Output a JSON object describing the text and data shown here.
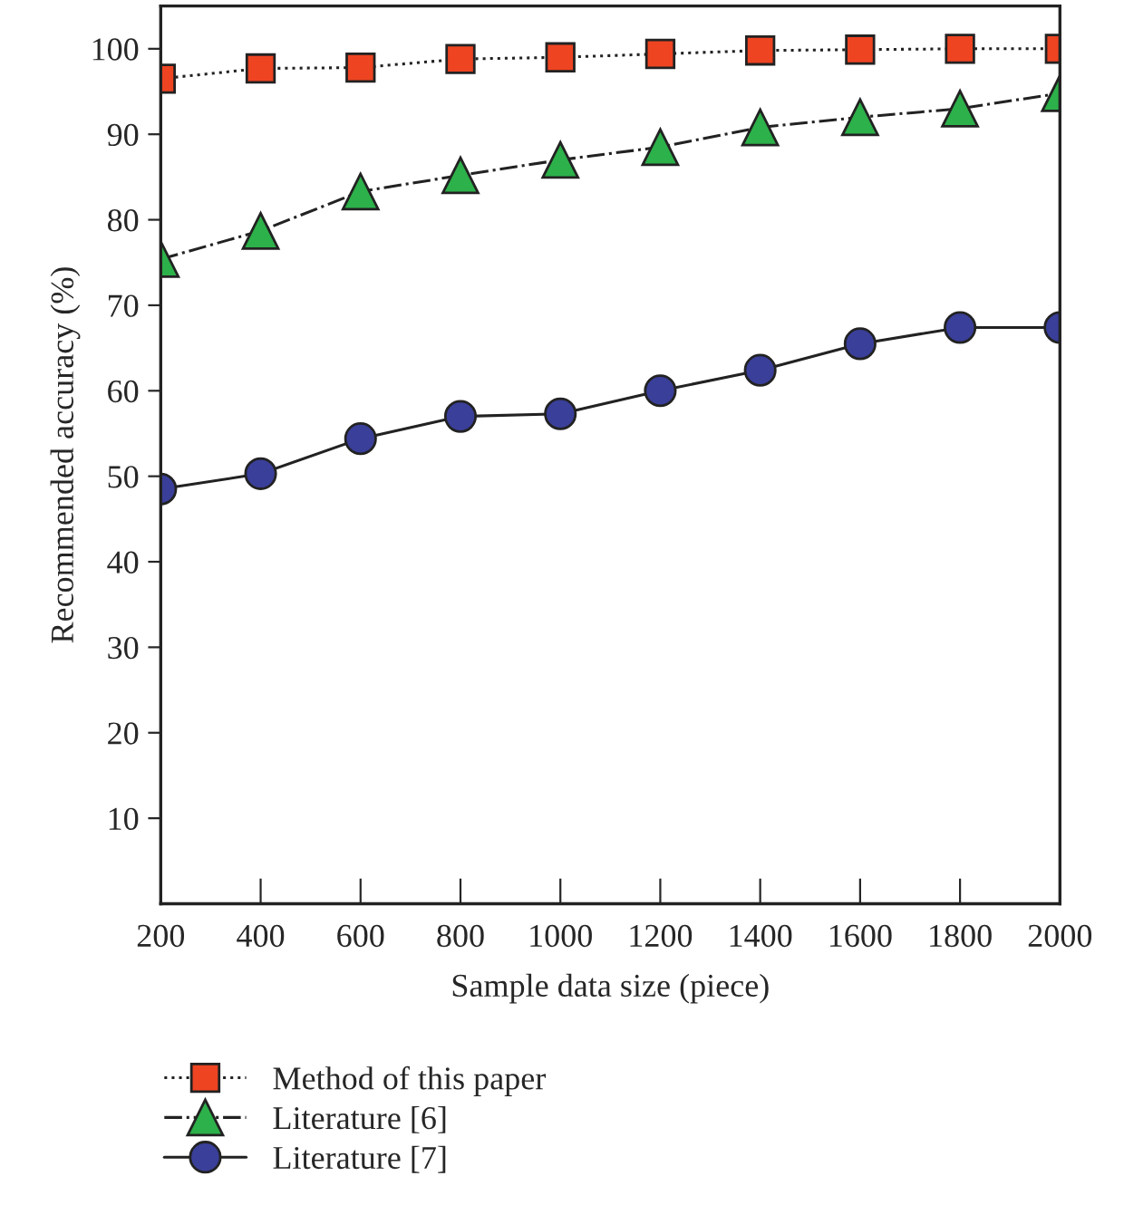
{
  "chart_data": {
    "type": "line",
    "xlabel": "Sample data size (piece)",
    "ylabel": "Recommended accuracy (%)",
    "x": [
      200,
      400,
      600,
      800,
      1000,
      1200,
      1400,
      1600,
      1800,
      2000
    ],
    "series": [
      {
        "name": "Method of this paper",
        "color": "#ee4422",
        "marker": "square",
        "line_style": "dotted",
        "values": [
          96.5,
          97.7,
          97.8,
          98.8,
          99.0,
          99.4,
          99.8,
          99.9,
          100,
          100
        ]
      },
      {
        "name": "Literature [6]",
        "color": "#2db14a",
        "marker": "triangle",
        "line_style": "dashdot",
        "values": [
          75.4,
          78.7,
          83.3,
          85.2,
          87.0,
          88.5,
          90.8,
          92.0,
          93.0,
          94.8
        ]
      },
      {
        "name": "Literature [7]",
        "color": "#3a3f9a",
        "marker": "circle",
        "line_style": "solid",
        "values": [
          48.5,
          50.3,
          54.4,
          57.0,
          57.3,
          60.0,
          62.4,
          65.5,
          67.4,
          67.4
        ]
      }
    ],
    "xlim": [
      200,
      2000
    ],
    "xticks": [
      200,
      400,
      600,
      800,
      1000,
      1200,
      1400,
      1600,
      1800,
      2000
    ],
    "ylim": [
      0,
      105
    ],
    "yticks": [
      10,
      20,
      30,
      40,
      50,
      60,
      70,
      80,
      90,
      100
    ],
    "grid": false,
    "legend": "bottom"
  }
}
